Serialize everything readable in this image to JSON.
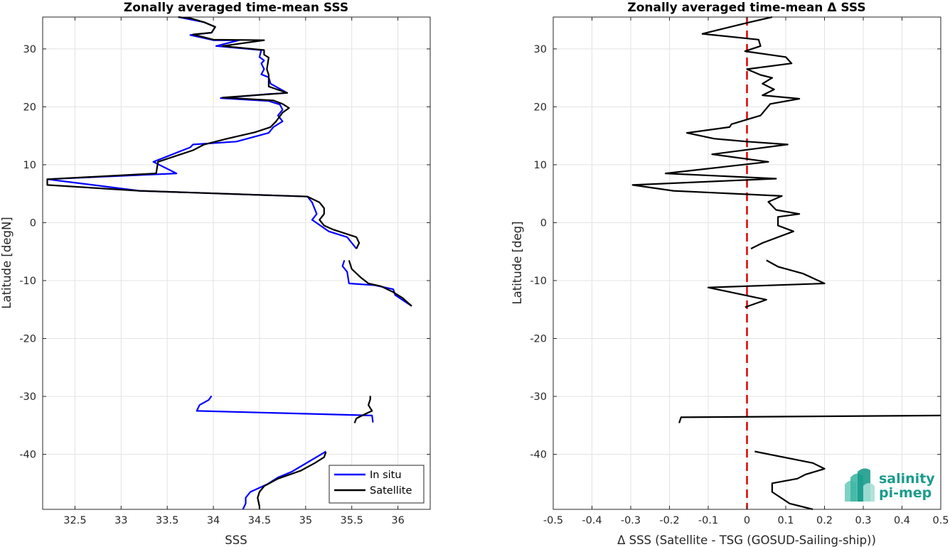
{
  "chart_data": [
    {
      "type": "line",
      "title": "Zonally averaged time-mean SSS",
      "xlabel": "SSS",
      "ylabel": "Latitude [degN]",
      "xlim": [
        32.15,
        36.35
      ],
      "ylim": [
        -49.5,
        35.5
      ],
      "xticks": [
        "32.5",
        "33",
        "33.5",
        "34",
        "34.5",
        "35",
        "35.5",
        "36"
      ],
      "xtick_values": [
        32.5,
        33,
        33.5,
        34,
        34.5,
        35,
        35.5,
        36
      ],
      "yticks": [
        "-40",
        "-30",
        "-20",
        "-10",
        "0",
        "10",
        "20",
        "30"
      ],
      "ytick_values": [
        -40,
        -30,
        -20,
        -10,
        0,
        10,
        20,
        30
      ],
      "grid": true,
      "legend_position": "bottom-right",
      "series": [
        {
          "name": "In situ",
          "color": "#0000ff",
          "segments": [
            [
              [
                33.62,
                35.5
              ],
              [
                33.9,
                34.6
              ],
              [
                34.02,
                33.8
              ],
              [
                33.98,
                32.8
              ],
              [
                33.75,
                32.4
              ],
              [
                34.0,
                31.5
              ],
              [
                34.28,
                31.5
              ],
              [
                34.03,
                30.5
              ],
              [
                34.52,
                29.8
              ],
              [
                34.5,
                28.6
              ],
              [
                34.55,
                28.0
              ],
              [
                34.52,
                27.5
              ],
              [
                34.55,
                26.5
              ],
              [
                34.52,
                25.6
              ],
              [
                34.6,
                25.1
              ],
              [
                34.62,
                24.0
              ],
              [
                34.8,
                22.4
              ],
              [
                34.6,
                22.2
              ],
              [
                34.08,
                21.5
              ],
              [
                34.6,
                21.0
              ],
              [
                34.72,
                20.4
              ],
              [
                34.75,
                19.5
              ],
              [
                34.7,
                18.5
              ],
              [
                34.75,
                17.5
              ],
              [
                34.65,
                16.5
              ],
              [
                34.6,
                15.5
              ],
              [
                34.25,
                14.0
              ],
              [
                33.78,
                13.5
              ],
              [
                33.75,
                13.0
              ],
              [
                33.35,
                10.5
              ],
              [
                33.6,
                8.5
              ],
              [
                32.2,
                7.5
              ],
              [
                32.55,
                6.8
              ],
              [
                33.2,
                5.5
              ],
              [
                35.02,
                4.5
              ],
              [
                35.07,
                3.5
              ],
              [
                35.12,
                1.5
              ],
              [
                35.07,
                0.5
              ],
              [
                35.25,
                -1.5
              ],
              [
                35.45,
                -2.5
              ],
              [
                35.55,
                -4.5
              ]
            ],
            [
              [
                35.42,
                -6.5
              ],
              [
                35.4,
                -7.5
              ],
              [
                35.45,
                -8.5
              ],
              [
                35.47,
                -10.5
              ],
              [
                35.75,
                -10.8
              ],
              [
                35.95,
                -11.5
              ],
              [
                35.97,
                -12.5
              ],
              [
                36.15,
                -14.4
              ]
            ],
            [
              [
                33.98,
                -29.9
              ],
              [
                33.95,
                -30.6
              ],
              [
                33.85,
                -31.5
              ],
              [
                33.82,
                -32.5
              ],
              [
                35.72,
                -33.3
              ],
              [
                35.73,
                -34.5
              ]
            ],
            [
              [
                35.22,
                -39.5
              ],
              [
                34.85,
                -43.0
              ],
              [
                34.7,
                -44.0
              ],
              [
                34.58,
                -45.2
              ],
              [
                34.4,
                -46.5
              ],
              [
                34.35,
                -47.5
              ],
              [
                34.35,
                -48.5
              ],
              [
                34.32,
                -49.5
              ]
            ]
          ]
        },
        {
          "name": "Satellite",
          "color": "#000000",
          "segments": [
            [
              [
                33.62,
                35.5
              ],
              [
                33.75,
                35.3
              ],
              [
                33.9,
                34.6
              ],
              [
                34.02,
                33.8
              ],
              [
                33.98,
                32.8
              ],
              [
                33.78,
                32.5
              ],
              [
                34.0,
                31.6
              ],
              [
                34.55,
                31.5
              ],
              [
                34.1,
                30.5
              ],
              [
                34.55,
                29.8
              ],
              [
                34.55,
                29.0
              ],
              [
                34.6,
                28.5
              ],
              [
                34.58,
                26.5
              ],
              [
                34.6,
                25.5
              ],
              [
                34.6,
                23.5
              ],
              [
                34.8,
                22.4
              ],
              [
                34.1,
                21.6
              ],
              [
                34.65,
                21.1
              ],
              [
                34.75,
                20.5
              ],
              [
                34.82,
                19.8
              ],
              [
                34.75,
                19.0
              ],
              [
                34.68,
                17.5
              ],
              [
                34.62,
                16.5
              ],
              [
                34.45,
                15.6
              ],
              [
                34.15,
                14.5
              ],
              [
                33.9,
                13.5
              ],
              [
                33.78,
                12.5
              ],
              [
                33.4,
                10.5
              ],
              [
                33.38,
                8.5
              ],
              [
                32.2,
                7.5
              ],
              [
                32.2,
                6.5
              ],
              [
                33.2,
                5.5
              ],
              [
                35.02,
                4.5
              ],
              [
                35.15,
                3.5
              ],
              [
                35.2,
                2.5
              ],
              [
                35.2,
                1.5
              ],
              [
                35.15,
                0.5
              ],
              [
                35.2,
                -0.5
              ],
              [
                35.3,
                -1.2
              ],
              [
                35.55,
                -2.5
              ],
              [
                35.58,
                -3.5
              ],
              [
                35.55,
                -4.5
              ]
            ],
            [
              [
                35.47,
                -6.5
              ],
              [
                35.5,
                -8.0
              ],
              [
                35.6,
                -9.5
              ],
              [
                35.68,
                -10.5
              ],
              [
                35.82,
                -11.0
              ],
              [
                35.95,
                -12.0
              ],
              [
                36.05,
                -13.0
              ],
              [
                36.15,
                -14.4
              ]
            ],
            [
              [
                35.7,
                -29.9
              ],
              [
                35.7,
                -30.5
              ],
              [
                35.68,
                -31.5
              ],
              [
                35.72,
                -32.5
              ],
              [
                35.65,
                -33.0
              ],
              [
                35.55,
                -33.8
              ],
              [
                35.53,
                -34.6
              ]
            ],
            [
              [
                35.22,
                -39.6
              ],
              [
                35.2,
                -40.5
              ],
              [
                35.1,
                -41.5
              ],
              [
                34.95,
                -42.8
              ],
              [
                34.7,
                -44.2
              ],
              [
                34.55,
                -45.5
              ],
              [
                34.5,
                -46.5
              ],
              [
                34.48,
                -47.5
              ],
              [
                34.5,
                -49.0
              ],
              [
                34.5,
                -49.5
              ]
            ]
          ]
        }
      ]
    },
    {
      "type": "line",
      "title": "Zonally averaged time-mean Δ SSS",
      "xlabel": "Δ SSS (Satellite - TSG (GOSUD-Sailing-ship))",
      "ylabel": "Latitude [deg]",
      "xlim": [
        -0.5,
        0.5
      ],
      "ylim": [
        -49.5,
        35.5
      ],
      "xticks": [
        "-0.5",
        "-0.4",
        "-0.3",
        "-0.2",
        "-0.1",
        "0",
        "0.1",
        "0.2",
        "0.3",
        "0.4",
        "0.5"
      ],
      "xtick_values": [
        -0.5,
        -0.4,
        -0.3,
        -0.2,
        -0.1,
        0,
        0.1,
        0.2,
        0.3,
        0.4,
        0.5
      ],
      "yticks": [
        "-40",
        "-30",
        "-20",
        "-10",
        "0",
        "10",
        "20",
        "30"
      ],
      "ytick_values": [
        -40,
        -30,
        -20,
        -10,
        0,
        10,
        20,
        30
      ],
      "grid": true,
      "reference_line": {
        "x": 0,
        "color": "#e00000",
        "style": "dashed"
      },
      "series": [
        {
          "color": "#000000",
          "segments": [
            [
              [
                0.065,
                35.5
              ],
              [
                0.0,
                34.5
              ],
              [
                -0.115,
                32.6
              ],
              [
                0.03,
                31.6
              ],
              [
                0.035,
                30.5
              ],
              [
                -0.005,
                29.6
              ],
              [
                0.1,
                28.6
              ],
              [
                0.115,
                27.5
              ],
              [
                0.0,
                26.5
              ],
              [
                0.035,
                25.5
              ],
              [
                0.065,
                25.0
              ],
              [
                0.04,
                24.0
              ],
              [
                0.07,
                23.0
              ],
              [
                0.04,
                22.0
              ],
              [
                0.135,
                21.4
              ],
              [
                0.06,
                20.5
              ],
              [
                0.035,
                18.5
              ],
              [
                -0.04,
                17.0
              ],
              [
                -0.045,
                16.5
              ],
              [
                -0.155,
                15.5
              ],
              [
                -0.085,
                14.5
              ],
              [
                0.0,
                14.0
              ],
              [
                0.105,
                13.5
              ],
              [
                -0.09,
                11.8
              ],
              [
                0.055,
                10.5
              ],
              [
                -0.21,
                8.5
              ],
              [
                0.075,
                7.6
              ],
              [
                -0.295,
                6.5
              ],
              [
                -0.19,
                5.5
              ],
              [
                0.09,
                4.6
              ],
              [
                0.055,
                3.6
              ],
              [
                0.075,
                2.2
              ],
              [
                0.135,
                1.5
              ],
              [
                0.08,
                1.0
              ],
              [
                0.08,
                -0.5
              ],
              [
                0.12,
                -1.5
              ],
              [
                0.04,
                -3.5
              ],
              [
                0.01,
                -4.5
              ]
            ],
            [
              [
                0.05,
                -6.5
              ],
              [
                0.08,
                -7.6
              ],
              [
                0.145,
                -8.8
              ],
              [
                0.2,
                -10.5
              ],
              [
                -0.1,
                -11.2
              ],
              [
                0.05,
                -13.3
              ],
              [
                -0.005,
                -14.6
              ]
            ],
            [
              [
                -0.175,
                -34.6
              ],
              [
                -0.17,
                -33.6
              ],
              [
                0.5,
                -33.3
              ]
            ],
            [
              [
                0.02,
                -39.5
              ],
              [
                0.17,
                -41.5
              ],
              [
                0.2,
                -42.5
              ],
              [
                0.15,
                -43.5
              ],
              [
                0.13,
                -44.2
              ],
              [
                0.065,
                -45.0
              ],
              [
                0.065,
                -46.5
              ],
              [
                0.11,
                -48.5
              ],
              [
                0.17,
                -49.5
              ]
            ]
          ]
        }
      ]
    }
  ],
  "legend": {
    "items": [
      "In situ",
      "Satellite"
    ]
  },
  "logo": {
    "line1": "salinity",
    "line2": "pi-mep"
  }
}
